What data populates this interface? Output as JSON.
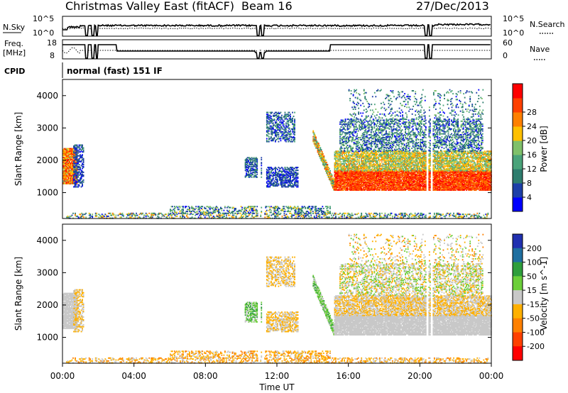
{
  "header": {
    "station": "Christmas Valley East (fitACF)",
    "beam": "Beam 16",
    "date": "27/Dec/2013"
  },
  "nsky_panel": {
    "left_label": "N.Sky",
    "right_label": "N.Search",
    "left_ticks": [
      "10^5",
      "10^0"
    ],
    "right_ticks": [
      "10^5",
      "10^0"
    ]
  },
  "freq_panel": {
    "left_label_line1": "Freq.",
    "left_label_line2": "[MHz]",
    "right_label": "Nave",
    "left_ticks": [
      "18",
      "8"
    ],
    "right_ticks": [
      "60",
      "0"
    ]
  },
  "cpid": {
    "label": "CPID",
    "value": "normal (fast) 151 IF"
  },
  "colors": {
    "power": [
      "#0000ff",
      "#1d3fa8",
      "#2e7d6e",
      "#4aa37a",
      "#7fc06a",
      "#ffc000",
      "#ff8000",
      "#ff4000",
      "#ff0000"
    ],
    "velocity": [
      "#2030b0",
      "#1f6fa0",
      "#2e9e3c",
      "#6ccf3a",
      "#c8c8c8",
      "#ffb000",
      "#ff8000",
      "#ff4000",
      "#ff0000"
    ]
  },
  "chart_data": [
    {
      "type": "heatmap",
      "quantity": "power",
      "ylabel": "Slant Range [km]",
      "y_ticks": [
        "1000",
        "2000",
        "3000",
        "4000"
      ],
      "ylim": [
        200,
        4500
      ],
      "colorbar_label": "Power [dB]",
      "colorbar_ticks": [
        "4",
        "8",
        "12",
        "16",
        "20",
        "24",
        "28"
      ],
      "clim": [
        0,
        32
      ]
    },
    {
      "type": "heatmap",
      "quantity": "velocity",
      "ylabel": "Slant Range [km]",
      "y_ticks": [
        "1000",
        "2000",
        "3000",
        "4000"
      ],
      "ylim": [
        200,
        4500
      ],
      "colorbar_label": "Velocity [m s^-1]",
      "colorbar_ticks": [
        "200",
        "100",
        "50",
        "15",
        "-15",
        "-50",
        "-100",
        "-200"
      ]
    }
  ],
  "x_axis": {
    "label": "Time UT",
    "ticks": [
      "00:00",
      "04:00",
      "08:00",
      "12:00",
      "16:00",
      "20:00",
      "00:00"
    ]
  }
}
